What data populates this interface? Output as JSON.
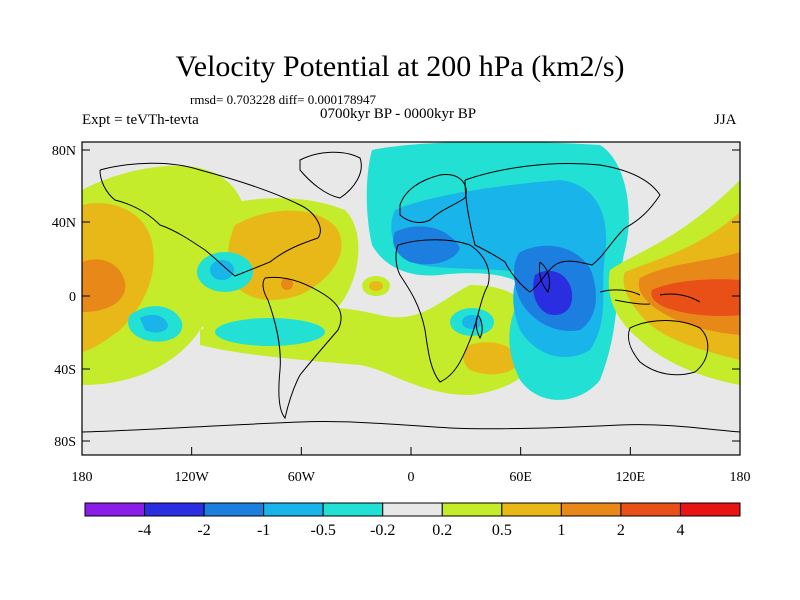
{
  "title": "Velocity Potential at 200 hPa (km2/s)",
  "stats_line": "rmsd= 0.703228 diff= 0.000178947",
  "experiment": "Expt = teVTh-tevta",
  "period": "0700kyr BP - 0000kyr BP",
  "season": "JJA",
  "lat_ticks": [
    "80N",
    "40N",
    "0",
    "40S",
    "80S"
  ],
  "lon_ticks": [
    "180",
    "120W",
    "60W",
    "0",
    "60E",
    "120E",
    "180"
  ],
  "colorbar": {
    "labels": [
      "-4",
      "-2",
      "-1",
      "-0.5",
      "-0.2",
      "0.2",
      "0.5",
      "1",
      "2",
      "4"
    ],
    "colors": [
      "#8a1ee8",
      "#2a2ee0",
      "#1c7fe0",
      "#18b4ea",
      "#22e0d4",
      "#e8e8e8",
      "#c4ec2a",
      "#e8b818",
      "#e88818",
      "#e85018",
      "#e81414"
    ]
  },
  "colors": {
    "background": "#e8e8e8",
    "coast": "#000000"
  }
}
